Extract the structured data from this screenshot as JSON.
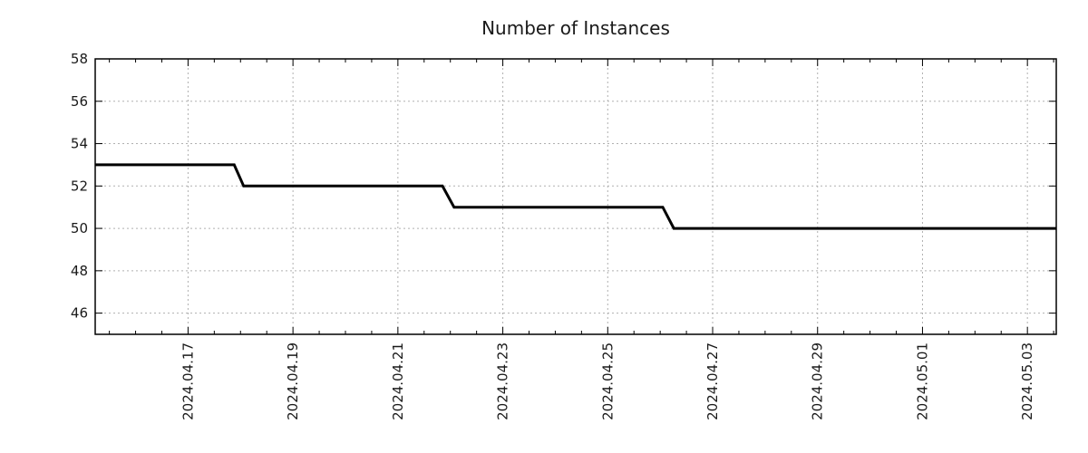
{
  "page": {
    "title": "Number of Instances"
  },
  "chart_data": {
    "type": "line",
    "subtype": "step",
    "title": "Number of Instances",
    "xlabel": "",
    "ylabel": "",
    "legend": "none",
    "grid": {
      "style": "dotted",
      "color": "#b0b0b0"
    },
    "colors": {
      "line": "#000000",
      "border": "#000000",
      "background": "#ffffff",
      "text": "#1a1a1a"
    },
    "x_axis": {
      "kind": "date",
      "tick_format": "YYYY.MM.DD",
      "visible_range": [
        "2024-04-15 05:30",
        "2024-05-03 13:00"
      ],
      "minor_tick_interval_days": 0.5,
      "major_ticks": [
        {
          "d": 0,
          "label": "2024.04.17"
        },
        {
          "d": 2,
          "label": "2024.04.19"
        },
        {
          "d": 4,
          "label": "2024.04.21"
        },
        {
          "d": 6,
          "label": "2024.04.23"
        },
        {
          "d": 8,
          "label": "2024.04.25"
        },
        {
          "d": 10,
          "label": "2024.04.27"
        },
        {
          "d": 12,
          "label": "2024.04.29"
        },
        {
          "d": 14,
          "label": "2024.05.01"
        },
        {
          "d": 16,
          "label": "2024.05.03"
        }
      ]
    },
    "y_axis": {
      "range": [
        45,
        58
      ],
      "ticks": [
        {
          "v": 58,
          "label": "58"
        },
        {
          "v": 56,
          "label": "56"
        },
        {
          "v": 54,
          "label": "54"
        },
        {
          "v": 52,
          "label": "52"
        },
        {
          "v": 50,
          "label": "50"
        },
        {
          "v": 48,
          "label": "48"
        },
        {
          "v": 46,
          "label": "46"
        }
      ]
    },
    "series": [
      {
        "name": "Number of Instances",
        "color": "#000000",
        "line_width": 3,
        "points": [
          {
            "date": "2024-04-15 05:30",
            "d": -1.77,
            "value": 53
          },
          {
            "date": "2024-04-17 21:00",
            "d": 0.88,
            "value": 53
          },
          {
            "date": "2024-04-18 01:30",
            "d": 1.06,
            "value": 52
          },
          {
            "date": "2024-04-21 20:30",
            "d": 4.85,
            "value": 52
          },
          {
            "date": "2024-04-22 01:40",
            "d": 5.07,
            "value": 51
          },
          {
            "date": "2024-04-26 01:15",
            "d": 9.05,
            "value": 51
          },
          {
            "date": "2024-04-26 06:15",
            "d": 9.26,
            "value": 50
          },
          {
            "date": "2024-05-03 13:00",
            "d": 16.55,
            "value": 50
          }
        ],
        "step_summary": [
          {
            "until": "2024-04-18",
            "value": 53
          },
          {
            "until": "2024-04-22",
            "value": 52
          },
          {
            "until": "2024-04-26",
            "value": 51
          },
          {
            "from": "2024-04-26",
            "value": 50
          }
        ]
      }
    ]
  }
}
